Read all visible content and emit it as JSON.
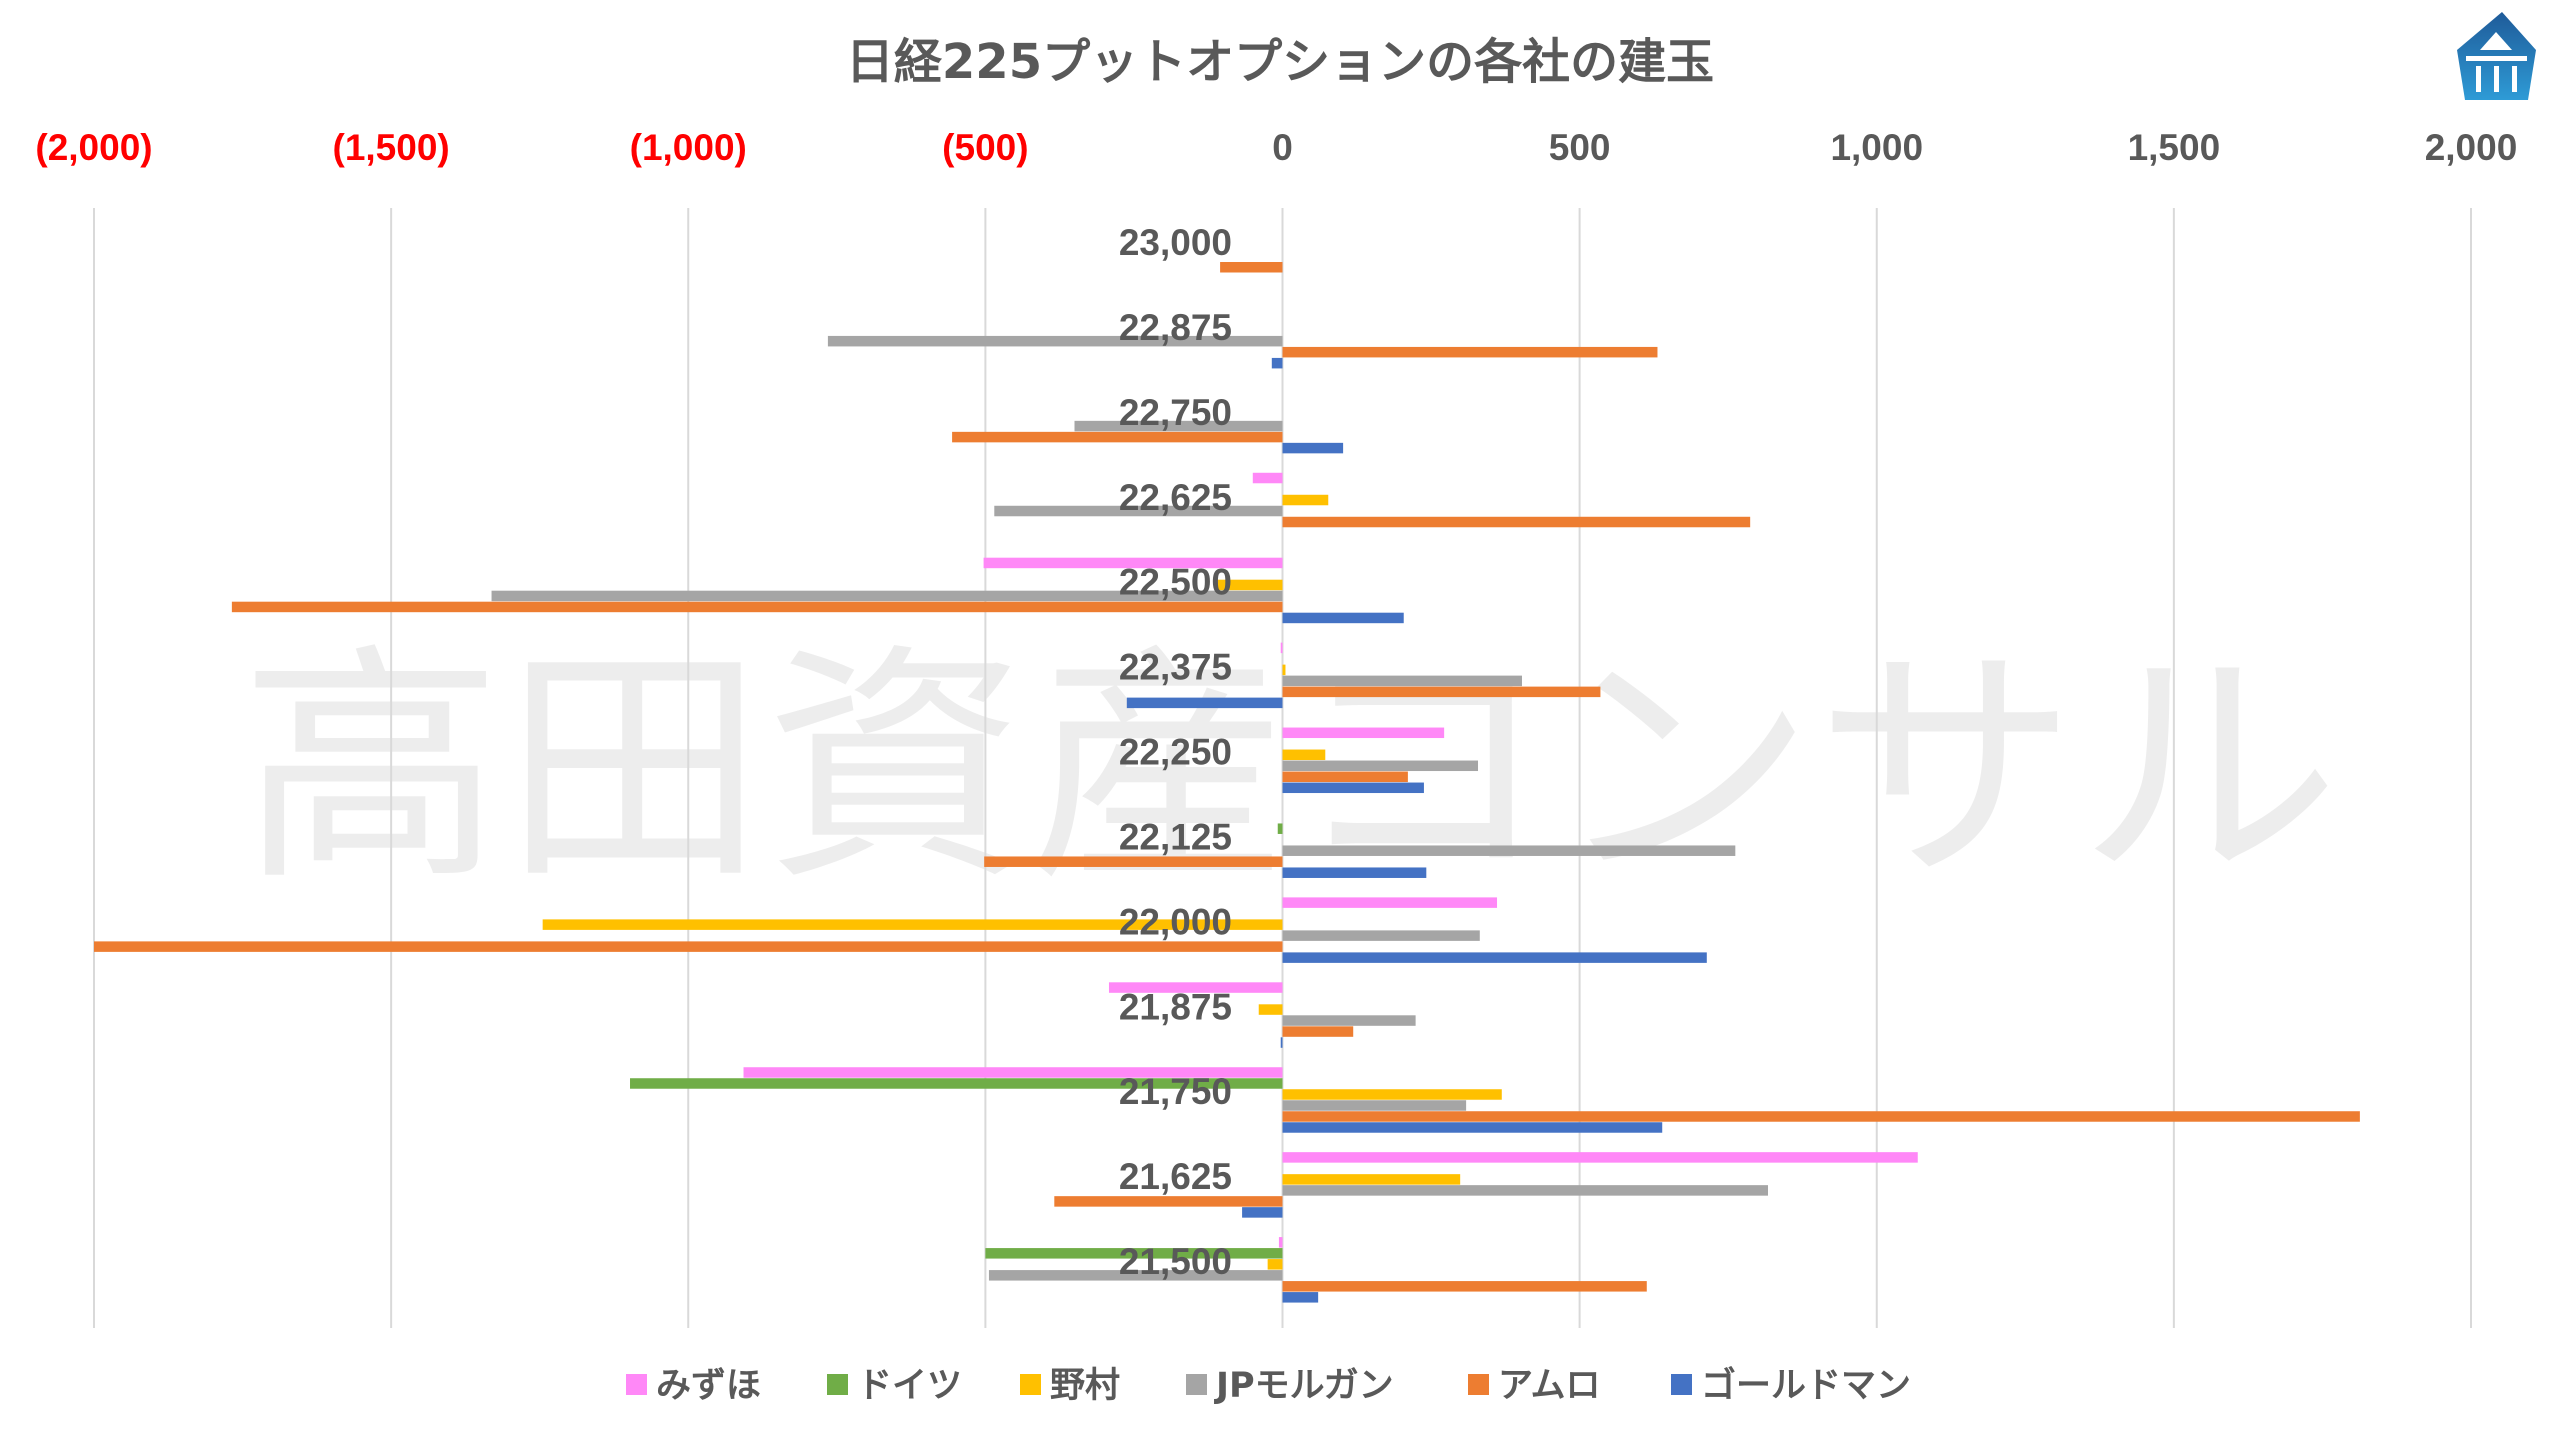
{
  "chart_data": {
    "type": "bar",
    "orientation": "horizontal",
    "title": "日経225プットオプションの各社の建玉",
    "watermark": "高田資産コンサル",
    "xlim": [
      -2000,
      2000
    ],
    "x_ticks": [
      {
        "value": -2000,
        "label": "(2,000)"
      },
      {
        "value": -1500,
        "label": "(1,500)"
      },
      {
        "value": -1000,
        "label": "(1,000)"
      },
      {
        "value": -500,
        "label": "(500)"
      },
      {
        "value": 0,
        "label": "0"
      },
      {
        "value": 500,
        "label": "500"
      },
      {
        "value": 1000,
        "label": "1,000"
      },
      {
        "value": 1500,
        "label": "1,500"
      },
      {
        "value": 2000,
        "label": "2,000"
      }
    ],
    "negative_tick_color": "#FF0000",
    "positive_tick_color": "#595959",
    "grid": true,
    "legend_position": "bottom",
    "categories": [
      "23,000",
      "22,875",
      "22,750",
      "22,625",
      "22,500",
      "22,375",
      "22,250",
      "22,125",
      "22,000",
      "21,875",
      "21,750",
      "21,625",
      "21,500"
    ],
    "series": [
      {
        "name": "みずほ",
        "color": "#FF88F7",
        "values": [
          0,
          0,
          0,
          -50,
          -503,
          -3,
          272,
          0,
          361,
          -292,
          -907,
          1069,
          -6
        ]
      },
      {
        "name": "ドイツ",
        "color": "#70AD47",
        "values": [
          0,
          0,
          0,
          0,
          0,
          0,
          0,
          -8,
          0,
          0,
          -1098,
          0,
          -500
        ]
      },
      {
        "name": "野村",
        "color": "#FFC000",
        "values": [
          0,
          0,
          0,
          77,
          -110,
          5,
          72,
          0,
          -1245,
          -40,
          369,
          299,
          -25
        ]
      },
      {
        "name": "JPモルガン",
        "color": "#A5A5A5",
        "values": [
          0,
          -765,
          -350,
          -485,
          -1331,
          403,
          329,
          762,
          332,
          224,
          309,
          817,
          -494
        ]
      },
      {
        "name": "アムロ",
        "color": "#ED7D31",
        "values": [
          -105,
          631,
          -556,
          787,
          -1768,
          535,
          211,
          -502,
          -2000,
          119,
          1813,
          -384,
          613
        ]
      },
      {
        "name": "ゴールドマン",
        "color": "#4472C4",
        "values": [
          0,
          -18,
          102,
          0,
          204,
          -262,
          238,
          242,
          714,
          -3,
          639,
          -68,
          60
        ]
      }
    ]
  },
  "logo": {
    "name": "company-logo",
    "color_top": "#1F5B99",
    "color_bottom": "#2E9BD6"
  }
}
